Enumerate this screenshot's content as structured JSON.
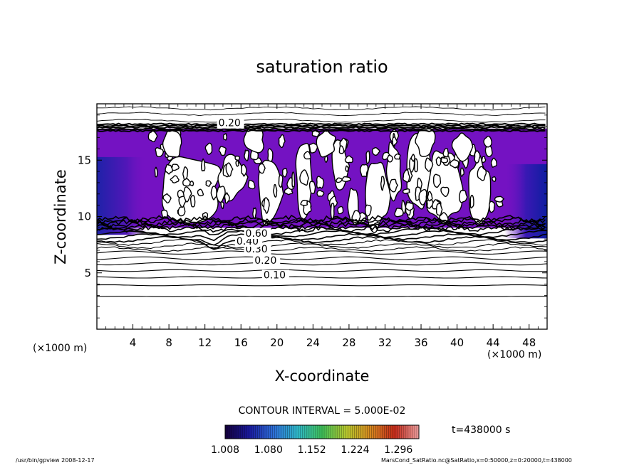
{
  "chart_data": {
    "type": "heatmap",
    "title": "saturation ratio",
    "xlabel": "X-coordinate",
    "ylabel": "Z-coordinate",
    "x_unit": "(×1000 m)",
    "z_unit": "(×1000 m)",
    "xlim": [
      0,
      50
    ],
    "ylim": [
      0,
      20
    ],
    "x_ticks": [
      4,
      8,
      12,
      16,
      20,
      24,
      28,
      32,
      36,
      40,
      44,
      48
    ],
    "y_ticks": [
      5,
      10,
      15
    ],
    "contour_interval_label": "CONTOUR INTERVAL = 5.000E-02",
    "contour_labels": [
      {
        "label": "0.10",
        "x": 18.5,
        "z": 4.5
      },
      {
        "label": "0.20",
        "x": 17.5,
        "z": 5.8
      },
      {
        "label": "0.30",
        "x": 16.5,
        "z": 6.8
      },
      {
        "label": "0.40",
        "x": 15.5,
        "z": 7.5
      },
      {
        "label": "0.60",
        "x": 16.5,
        "z": 8.2
      },
      {
        "label": "0.20",
        "x": 13.5,
        "z": 18.0
      }
    ],
    "colorbar": {
      "ticks": [
        "1.008",
        "1.080",
        "1.152",
        "1.224",
        "1.296"
      ],
      "min": 1.008,
      "max": 1.33,
      "colors": [
        "#14003c",
        "#1a1a9e",
        "#2e6fd8",
        "#2fb8c8",
        "#3fc25a",
        "#b7c82e",
        "#d6881f",
        "#c42a1a",
        "#f0a0a0"
      ]
    },
    "time_label": "t=438000 s",
    "supersaturated_region": {
      "z_range": [
        9.0,
        17.8
      ],
      "color": "#7412c2",
      "dark_color": "#2a1aa8"
    },
    "contour_lines_z": [
      2.9,
      3.9,
      4.6,
      5.2,
      5.8,
      6.3,
      6.8,
      7.1,
      7.4,
      7.7,
      7.95,
      8.2,
      8.45,
      8.7
    ]
  },
  "footer": {
    "left": "/usr/bin/gpview   2008-12-17",
    "right": "MarsCond_SatRatio.nc@SatRatio,x=0:50000,z=0:20000,t=438000"
  }
}
